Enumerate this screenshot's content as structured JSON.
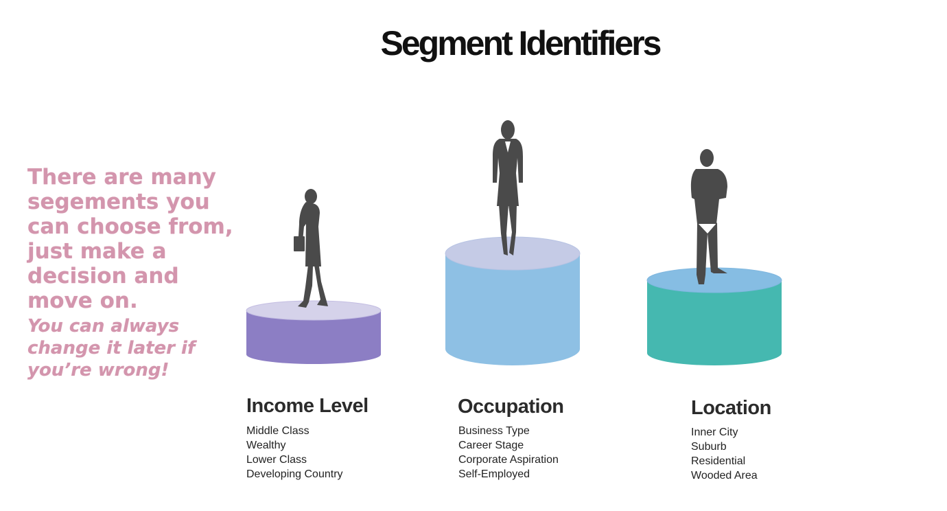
{
  "page": {
    "title": "Segment Identifiers",
    "note": {
      "lead": "There are many segements you can choose from, just make a decision and move on.",
      "tail": "You can always change it later if you’re wrong!"
    }
  },
  "segments": [
    {
      "title": "Income Level",
      "items": [
        "Middle Class",
        "Wealthy",
        "Lower Class",
        "Developing Country"
      ],
      "colors": {
        "side": "#8c7ec4",
        "top": "#d5d2ea",
        "rim": "#c3bde2"
      }
    },
    {
      "title": "Occupation",
      "items": [
        "Business Type",
        "Career Stage",
        "Corporate Aspiration",
        "Self-Employed"
      ],
      "colors": {
        "side": "#8ec0e4",
        "top": "#c5cbe6",
        "rim": "#b7c3e3"
      }
    },
    {
      "title": "Location",
      "items": [
        "Inner City",
        "Suburb",
        "Residential",
        "Wooded Area"
      ],
      "colors": {
        "side": "#45b8b0",
        "top": "#86bde3",
        "rim": "#7fb7df"
      }
    }
  ],
  "silhouette_color": "#4a4a4a"
}
